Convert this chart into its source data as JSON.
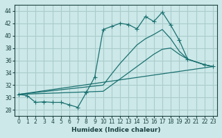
{
  "xlabel": "Humidex (Indice chaleur)",
  "bg_color": "#cce8e8",
  "grid_color": "#aacccc",
  "line_color": "#1a7070",
  "xlim": [
    -0.5,
    23.5
  ],
  "ylim": [
    27,
    45
  ],
  "yticks": [
    28,
    30,
    32,
    34,
    36,
    38,
    40,
    42,
    44
  ],
  "xticks": [
    0,
    1,
    2,
    3,
    4,
    5,
    6,
    7,
    8,
    9,
    10,
    11,
    12,
    13,
    14,
    15,
    16,
    17,
    18,
    19,
    20,
    21,
    22,
    23
  ],
  "line1_x": [
    0,
    1,
    2,
    3,
    4,
    5,
    6,
    7,
    8,
    9,
    10,
    11,
    12,
    13,
    14,
    15,
    16,
    17,
    18,
    19,
    20,
    22,
    23
  ],
  "line1_y": [
    30.5,
    30.3,
    29.2,
    29.3,
    29.2,
    29.2,
    28.8,
    28.4,
    30.8,
    33.3,
    41.0,
    41.5,
    42.0,
    41.8,
    41.1,
    43.1,
    42.3,
    43.8,
    41.7,
    39.3,
    36.2,
    35.3,
    35.0
  ],
  "line2_x": [
    0,
    10,
    11,
    12,
    13,
    14,
    15,
    16,
    17,
    18,
    19,
    20,
    22,
    23
  ],
  "line2_y": [
    30.5,
    32.0,
    33.8,
    35.5,
    37.0,
    38.5,
    39.5,
    40.2,
    41.0,
    39.5,
    37.5,
    36.2,
    35.3,
    35.0
  ],
  "line3_x": [
    0,
    10,
    11,
    12,
    13,
    14,
    15,
    16,
    17,
    18,
    19,
    20,
    22,
    23
  ],
  "line3_y": [
    30.5,
    31.0,
    32.0,
    33.0,
    34.0,
    35.0,
    36.0,
    37.0,
    37.8,
    38.0,
    37.0,
    36.2,
    35.3,
    35.0
  ],
  "line4_x": [
    0,
    23
  ],
  "line4_y": [
    30.5,
    35.0
  ]
}
